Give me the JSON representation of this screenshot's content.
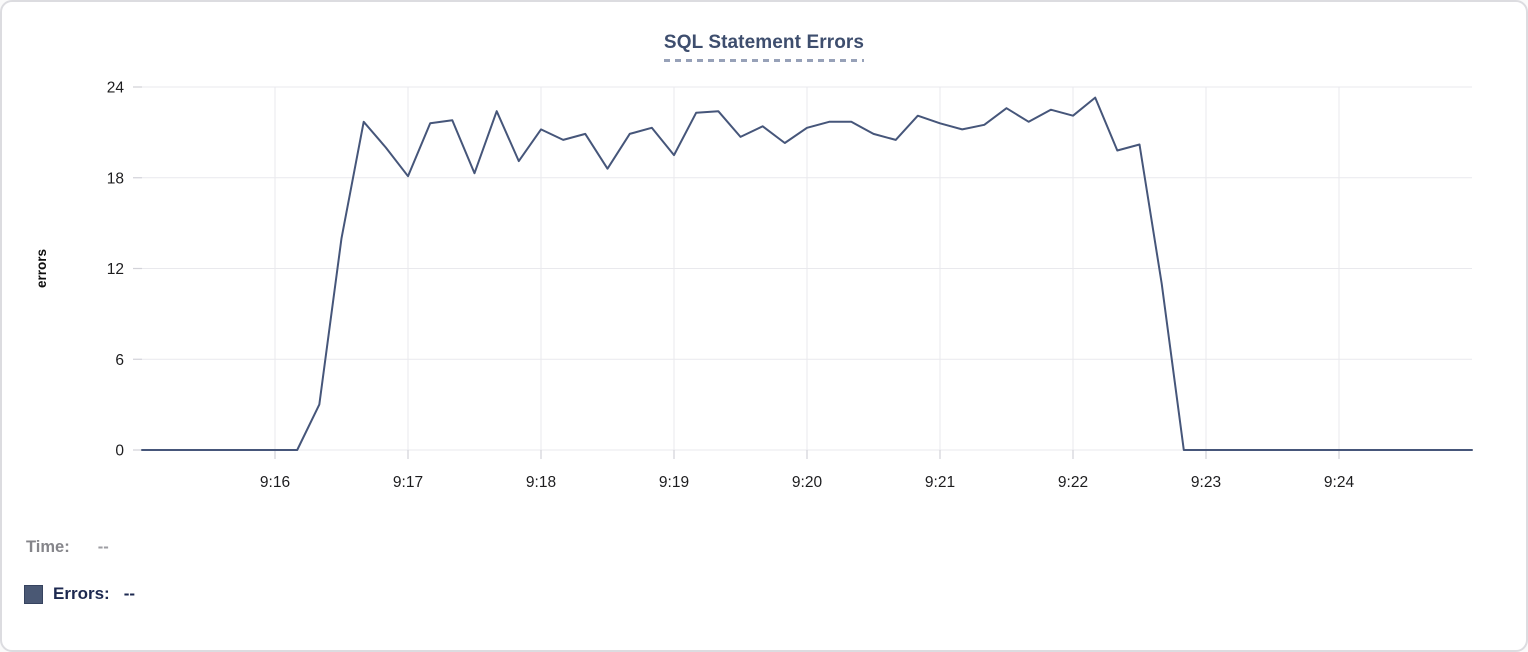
{
  "chart_data": {
    "type": "line",
    "title": "SQL Statement Errors",
    "xlabel": "",
    "ylabel": "errors",
    "ylim": [
      0,
      24
    ],
    "y_ticks": [
      0,
      6,
      12,
      18,
      24
    ],
    "x_ticks": [
      "9:16",
      "9:17",
      "9:18",
      "9:19",
      "9:20",
      "9:21",
      "9:22",
      "9:23",
      "9:24"
    ],
    "x_domain": [
      "9:15:00",
      "9:25:00"
    ],
    "grid": true,
    "legend_position": "bottom-left",
    "series": [
      {
        "name": "Errors",
        "color": "#46567a",
        "points": [
          [
            "9:15:00",
            0
          ],
          [
            "9:15:10",
            0
          ],
          [
            "9:15:20",
            0
          ],
          [
            "9:15:30",
            0
          ],
          [
            "9:15:40",
            0
          ],
          [
            "9:15:50",
            0
          ],
          [
            "9:16:00",
            0
          ],
          [
            "9:16:10",
            0
          ],
          [
            "9:16:20",
            3
          ],
          [
            "9:16:30",
            14
          ],
          [
            "9:16:40",
            21.7
          ],
          [
            "9:16:50",
            20
          ],
          [
            "9:17:00",
            18.1
          ],
          [
            "9:17:10",
            21.6
          ],
          [
            "9:17:20",
            21.8
          ],
          [
            "9:17:30",
            18.3
          ],
          [
            "9:17:40",
            22.4
          ],
          [
            "9:17:50",
            19.1
          ],
          [
            "9:18:00",
            21.2
          ],
          [
            "9:18:10",
            20.5
          ],
          [
            "9:18:20",
            20.9
          ],
          [
            "9:18:30",
            18.6
          ],
          [
            "9:18:40",
            20.9
          ],
          [
            "9:18:50",
            21.3
          ],
          [
            "9:19:00",
            19.5
          ],
          [
            "9:19:10",
            22.3
          ],
          [
            "9:19:20",
            22.4
          ],
          [
            "9:19:30",
            20.7
          ],
          [
            "9:19:40",
            21.4
          ],
          [
            "9:19:50",
            20.3
          ],
          [
            "9:20:00",
            21.3
          ],
          [
            "9:20:10",
            21.7
          ],
          [
            "9:20:20",
            21.7
          ],
          [
            "9:20:30",
            20.9
          ],
          [
            "9:20:40",
            20.5
          ],
          [
            "9:20:50",
            22.1
          ],
          [
            "9:21:00",
            21.6
          ],
          [
            "9:21:10",
            21.2
          ],
          [
            "9:21:20",
            21.5
          ],
          [
            "9:21:30",
            22.6
          ],
          [
            "9:21:40",
            21.7
          ],
          [
            "9:21:50",
            22.5
          ],
          [
            "9:22:00",
            22.1
          ],
          [
            "9:22:10",
            23.3
          ],
          [
            "9:22:20",
            19.8
          ],
          [
            "9:22:30",
            20.2
          ],
          [
            "9:22:40",
            11
          ],
          [
            "9:22:50",
            0
          ],
          [
            "9:23:00",
            0
          ],
          [
            "9:23:10",
            0
          ],
          [
            "9:23:20",
            0
          ],
          [
            "9:23:30",
            0
          ],
          [
            "9:23:40",
            0
          ],
          [
            "9:23:50",
            0
          ],
          [
            "9:24:00",
            0
          ],
          [
            "9:24:10",
            0
          ],
          [
            "9:24:20",
            0
          ],
          [
            "9:24:30",
            0
          ],
          [
            "9:24:40",
            0
          ],
          [
            "9:24:50",
            0
          ],
          [
            "9:25:00",
            0
          ]
        ]
      }
    ]
  },
  "readout": {
    "time_label": "Time:",
    "time_value": "--",
    "errors_label": "Errors:",
    "errors_value": "--"
  },
  "colors": {
    "line": "#46567a",
    "swatch": "#4a5874",
    "title": "#3e4e6e",
    "title_underline": "#97a1b8",
    "grid": "#e9e9ed",
    "tick": "#d2d2d8",
    "axis_text": "#1d1d1f",
    "time_label": "#85858a",
    "errors_label": "#1d2950",
    "card_border": "#dcdce0"
  }
}
